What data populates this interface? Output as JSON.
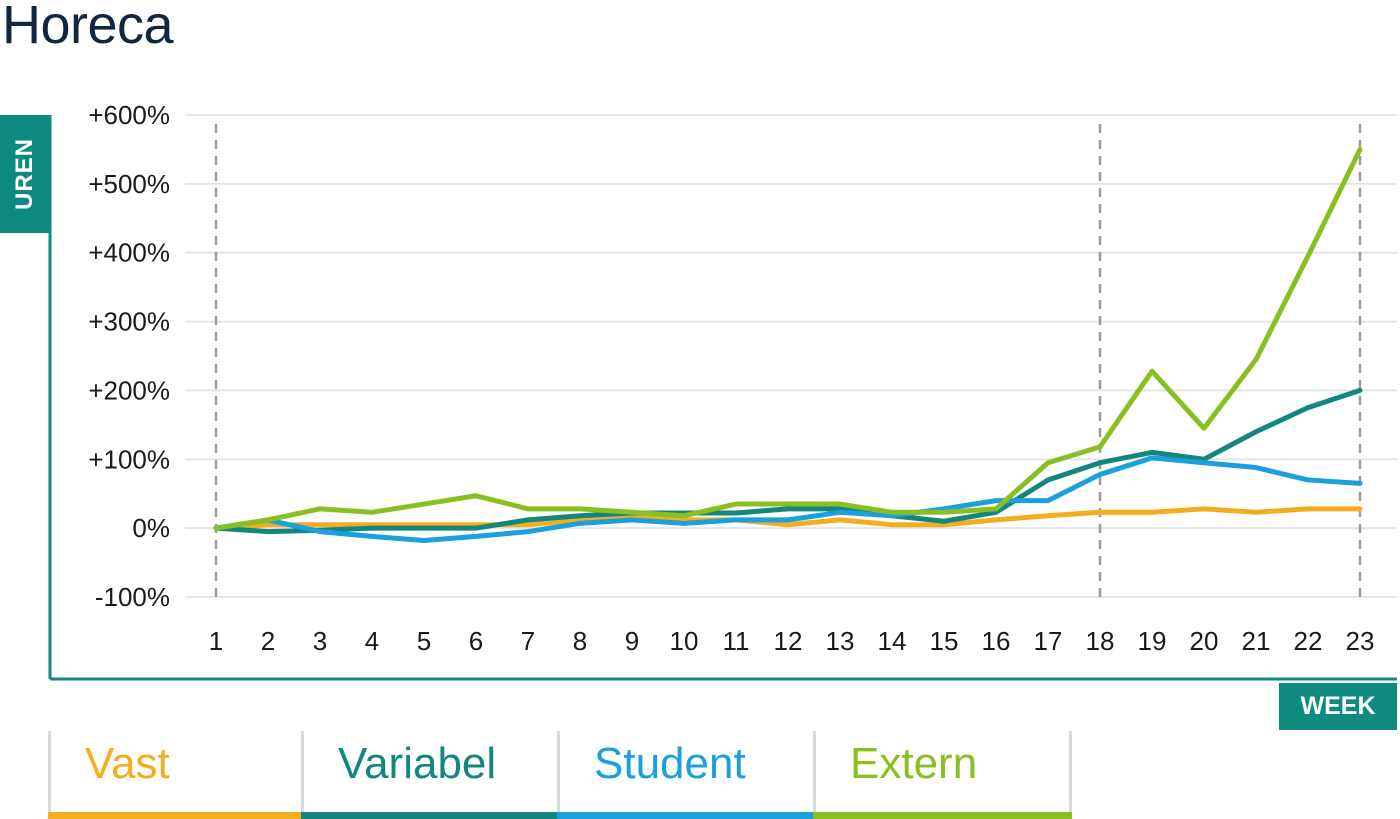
{
  "title": "Horeca",
  "chart_data": {
    "type": "line",
    "title": "Horeca",
    "ylabel": "UREN",
    "xlabel": "WEEK",
    "x": [
      1,
      2,
      3,
      4,
      5,
      6,
      7,
      8,
      9,
      10,
      11,
      12,
      13,
      14,
      15,
      16,
      17,
      18,
      19,
      20,
      21,
      22,
      23
    ],
    "ylim": [
      -100,
      600
    ],
    "yticks": [
      "-100%",
      "0%",
      "+100%",
      "+200%",
      "+300%",
      "+400%",
      "+500%",
      "+600%"
    ],
    "ytick_values": [
      -100,
      0,
      100,
      200,
      300,
      400,
      500,
      600
    ],
    "reference_lines_x": [
      1,
      18,
      23
    ],
    "grid": true,
    "legend_position": "bottom",
    "series": [
      {
        "name": "Vast",
        "color": "#f3ad1e",
        "values": [
          0,
          5,
          5,
          5,
          5,
          5,
          5,
          12,
          18,
          12,
          12,
          5,
          12,
          5,
          5,
          12,
          18,
          23,
          23,
          28,
          23,
          28,
          28
        ]
      },
      {
        "name": "Variabel",
        "color": "#13877d",
        "values": [
          0,
          -5,
          -3,
          0,
          0,
          0,
          12,
          18,
          22,
          22,
          22,
          28,
          28,
          18,
          10,
          23,
          70,
          95,
          110,
          100,
          140,
          175,
          200
        ]
      },
      {
        "name": "Student",
        "color": "#1aa0dc",
        "values": [
          0,
          12,
          -5,
          -12,
          -18,
          -12,
          -5,
          7,
          12,
          7,
          12,
          12,
          23,
          18,
          28,
          40,
          40,
          78,
          102,
          95,
          88,
          70,
          65
        ]
      },
      {
        "name": "Extern",
        "color": "#8abf22",
        "values": [
          0,
          12,
          28,
          23,
          35,
          47,
          28,
          28,
          23,
          18,
          35,
          35,
          35,
          23,
          23,
          28,
          95,
          118,
          228,
          145,
          245,
          395,
          550
        ]
      }
    ]
  }
}
